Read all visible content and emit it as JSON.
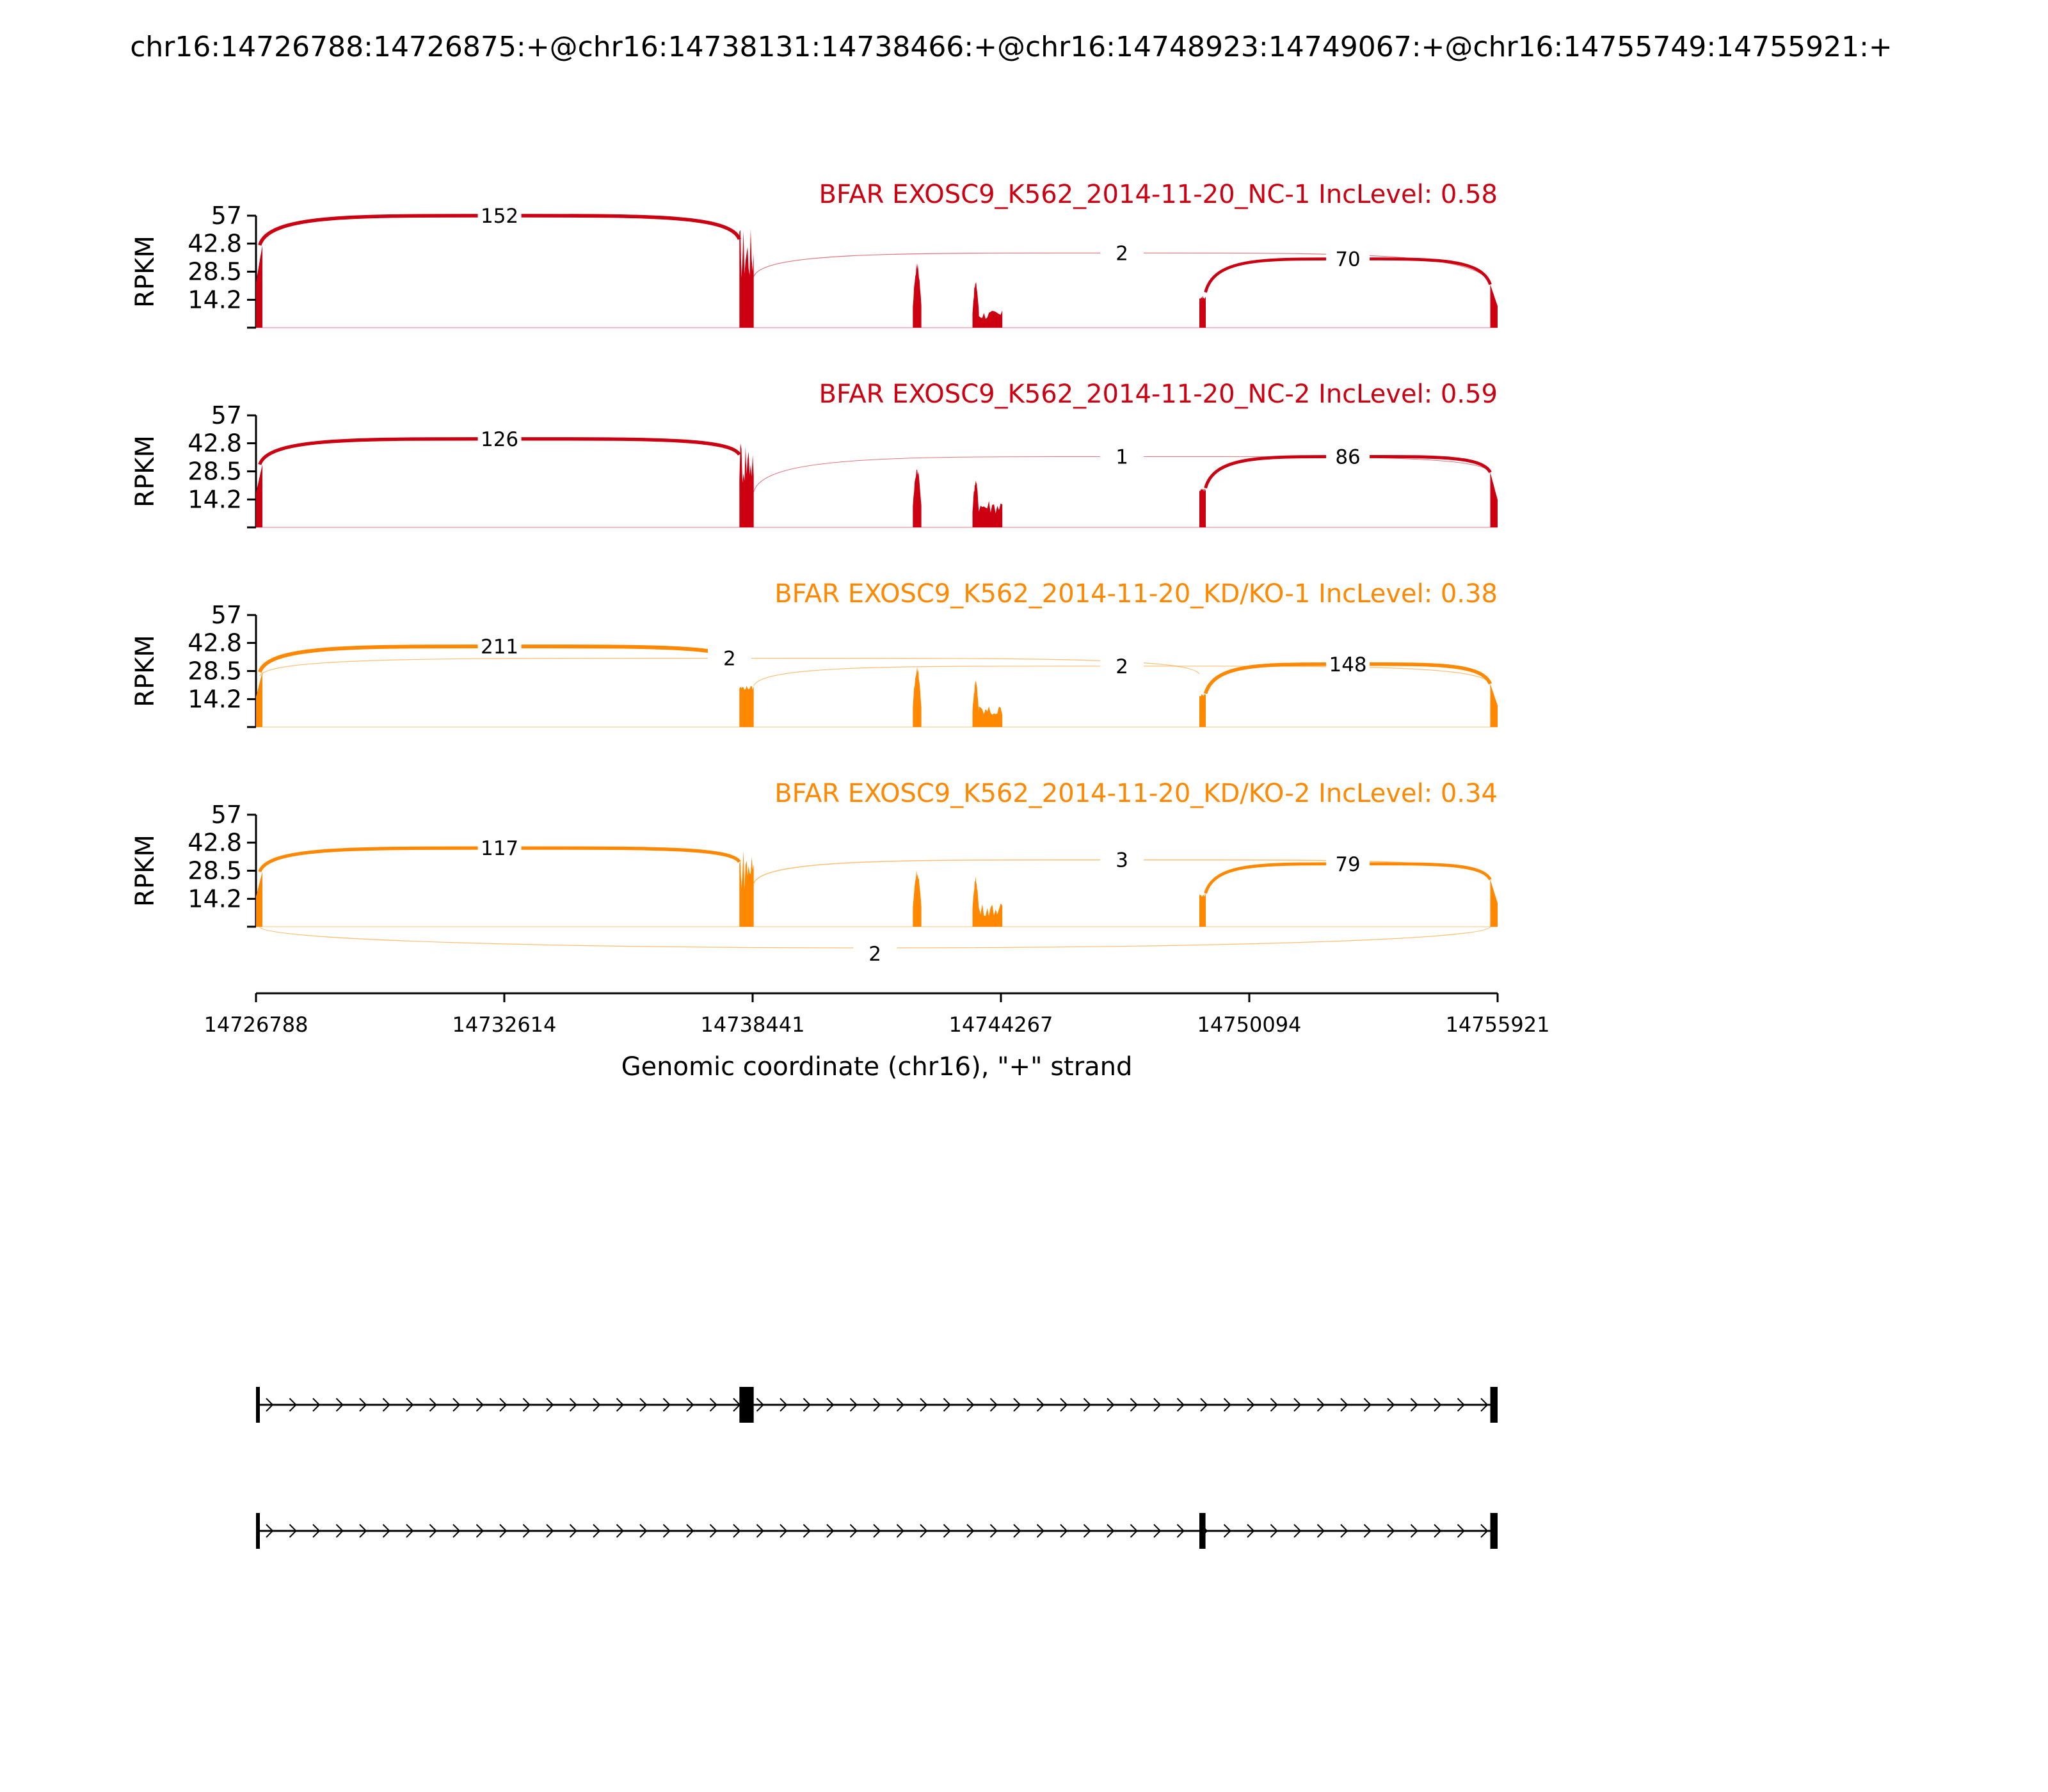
{
  "page_title": "chr16:14726788:14726875:+@chr16:14738131:14738466:+@chr16:14748923:14749067:+@chr16:14755749:14755921:+",
  "chart_data": {
    "type": "sashimi",
    "xlabel": "Genomic coordinate (chr16), \"+\" strand",
    "xlim": [
      14726788,
      14755921
    ],
    "xticks": [
      "14726788",
      "14732614",
      "14738441",
      "14744267",
      "14750094",
      "14755921"
    ],
    "ylabel": "RPKM",
    "ylim": [
      0,
      57
    ],
    "yticks": [
      "14.2",
      "28.5",
      "42.8",
      "57"
    ],
    "colors": {
      "NC": "#cc0011",
      "KD": "#ff8800",
      "axis": "#000000"
    },
    "panels": [
      {
        "title": "BFAR EXOSC9_K562_2014-11-20_NC-1 IncLevel: 0.58",
        "color": "#cc0011",
        "coverage": [
          {
            "start": 14726788,
            "end": 14726875,
            "max": 42,
            "shape": "rise"
          },
          {
            "start": 14738131,
            "end": 14738466,
            "max": 52,
            "shape": "spiky"
          },
          {
            "start": 14742200,
            "end": 14742400,
            "max": 34,
            "shape": "peak"
          },
          {
            "start": 14743600,
            "end": 14743750,
            "max": 24,
            "shape": "peak"
          },
          {
            "start": 14743750,
            "end": 14744300,
            "max": 9,
            "shape": "spiky"
          },
          {
            "start": 14748923,
            "end": 14749067,
            "max": 16,
            "shape": "flat"
          },
          {
            "start": 14755749,
            "end": 14755921,
            "max": 22,
            "shape": "fall"
          }
        ],
        "junctions": [
          {
            "start": 14726875,
            "end": 14738131,
            "count": "152",
            "side": "above",
            "y_from": 42,
            "y_to": 45,
            "label_y": 57
          },
          {
            "start": 14738466,
            "end": 14755749,
            "count": "2",
            "side": "above",
            "y_from": 26,
            "y_to": 22,
            "label_y": 38
          },
          {
            "start": 14749067,
            "end": 14755749,
            "count": "70",
            "side": "above",
            "y_from": 18,
            "y_to": 22,
            "label_y": 35
          }
        ]
      },
      {
        "title": "BFAR EXOSC9_K562_2014-11-20_NC-2 IncLevel: 0.59",
        "color": "#cc0011",
        "coverage": [
          {
            "start": 14726788,
            "end": 14726875,
            "max": 32,
            "shape": "rise"
          },
          {
            "start": 14738131,
            "end": 14738466,
            "max": 47,
            "shape": "spiky"
          },
          {
            "start": 14742200,
            "end": 14742400,
            "max": 32,
            "shape": "peak"
          },
          {
            "start": 14743600,
            "end": 14743750,
            "max": 25,
            "shape": "peak"
          },
          {
            "start": 14743750,
            "end": 14744300,
            "max": 15,
            "shape": "spiky"
          },
          {
            "start": 14748923,
            "end": 14749067,
            "max": 20,
            "shape": "flat"
          },
          {
            "start": 14755749,
            "end": 14755921,
            "max": 28,
            "shape": "fall"
          }
        ],
        "junctions": [
          {
            "start": 14726875,
            "end": 14738131,
            "count": "126",
            "side": "above",
            "y_from": 32,
            "y_to": 37,
            "label_y": 45
          },
          {
            "start": 14738466,
            "end": 14755749,
            "count": "1",
            "side": "above",
            "y_from": 18,
            "y_to": 28,
            "label_y": 36
          },
          {
            "start": 14749067,
            "end": 14755749,
            "count": "86",
            "side": "above",
            "y_from": 20,
            "y_to": 28,
            "label_y": 36
          }
        ]
      },
      {
        "title": "BFAR EXOSC9_K562_2014-11-20_KD/KO-1 IncLevel: 0.38",
        "color": "#ff8800",
        "coverage": [
          {
            "start": 14726788,
            "end": 14726875,
            "max": 28,
            "shape": "rise"
          },
          {
            "start": 14738131,
            "end": 14738466,
            "max": 21,
            "shape": "flat"
          },
          {
            "start": 14742200,
            "end": 14742400,
            "max": 32,
            "shape": "peak"
          },
          {
            "start": 14743600,
            "end": 14743750,
            "max": 24,
            "shape": "peak"
          },
          {
            "start": 14743750,
            "end": 14744300,
            "max": 11,
            "shape": "spiky"
          },
          {
            "start": 14748923,
            "end": 14749067,
            "max": 17,
            "shape": "flat"
          },
          {
            "start": 14755749,
            "end": 14755921,
            "max": 22,
            "shape": "fall"
          }
        ],
        "junctions": [
          {
            "start": 14726875,
            "end": 14738131,
            "count": "211",
            "side": "above",
            "y_from": 28,
            "y_to": 33,
            "label_y": 41
          },
          {
            "start": 14726875,
            "end": 14748923,
            "count": "2",
            "side": "above",
            "y_from": 26,
            "y_to": 27,
            "label_y": 35
          },
          {
            "start": 14738466,
            "end": 14755749,
            "count": "2",
            "side": "above",
            "y_from": 21,
            "y_to": 22,
            "label_y": 31
          },
          {
            "start": 14749067,
            "end": 14755749,
            "count": "148",
            "side": "above",
            "y_from": 17,
            "y_to": 22,
            "label_y": 32
          }
        ]
      },
      {
        "title": "BFAR EXOSC9_K562_2014-11-20_KD/KO-2 IncLevel: 0.34",
        "color": "#ff8800",
        "coverage": [
          {
            "start": 14726788,
            "end": 14726875,
            "max": 28,
            "shape": "rise"
          },
          {
            "start": 14738131,
            "end": 14738466,
            "max": 41,
            "shape": "spiky"
          },
          {
            "start": 14742200,
            "end": 14742400,
            "max": 30,
            "shape": "peak"
          },
          {
            "start": 14743600,
            "end": 14743750,
            "max": 26,
            "shape": "peak"
          },
          {
            "start": 14743750,
            "end": 14744300,
            "max": 12,
            "shape": "spiky"
          },
          {
            "start": 14748923,
            "end": 14749067,
            "max": 17,
            "shape": "flat"
          },
          {
            "start": 14755749,
            "end": 14755921,
            "max": 24,
            "shape": "fall"
          }
        ],
        "junctions": [
          {
            "start": 14726875,
            "end": 14738131,
            "count": "117",
            "side": "above",
            "y_from": 28,
            "y_to": 33,
            "label_y": 40
          },
          {
            "start": 14738466,
            "end": 14755749,
            "count": "3",
            "side": "above",
            "y_from": 22,
            "y_to": 24,
            "label_y": 34
          },
          {
            "start": 14749067,
            "end": 14755749,
            "count": "79",
            "side": "above",
            "y_from": 17,
            "y_to": 24,
            "label_y": 32
          },
          {
            "start": 14726875,
            "end": 14755749,
            "count": "2",
            "side": "below",
            "y_from": 0,
            "y_to": 0,
            "label_y": -13
          }
        ]
      }
    ],
    "isoforms": [
      {
        "exons": [
          [
            14726788,
            14726875
          ],
          [
            14738131,
            14738466
          ],
          [
            14755749,
            14755921
          ]
        ]
      },
      {
        "exons": [
          [
            14726788,
            14726875
          ],
          [
            14748923,
            14749067
          ],
          [
            14755749,
            14755921
          ]
        ]
      }
    ]
  }
}
